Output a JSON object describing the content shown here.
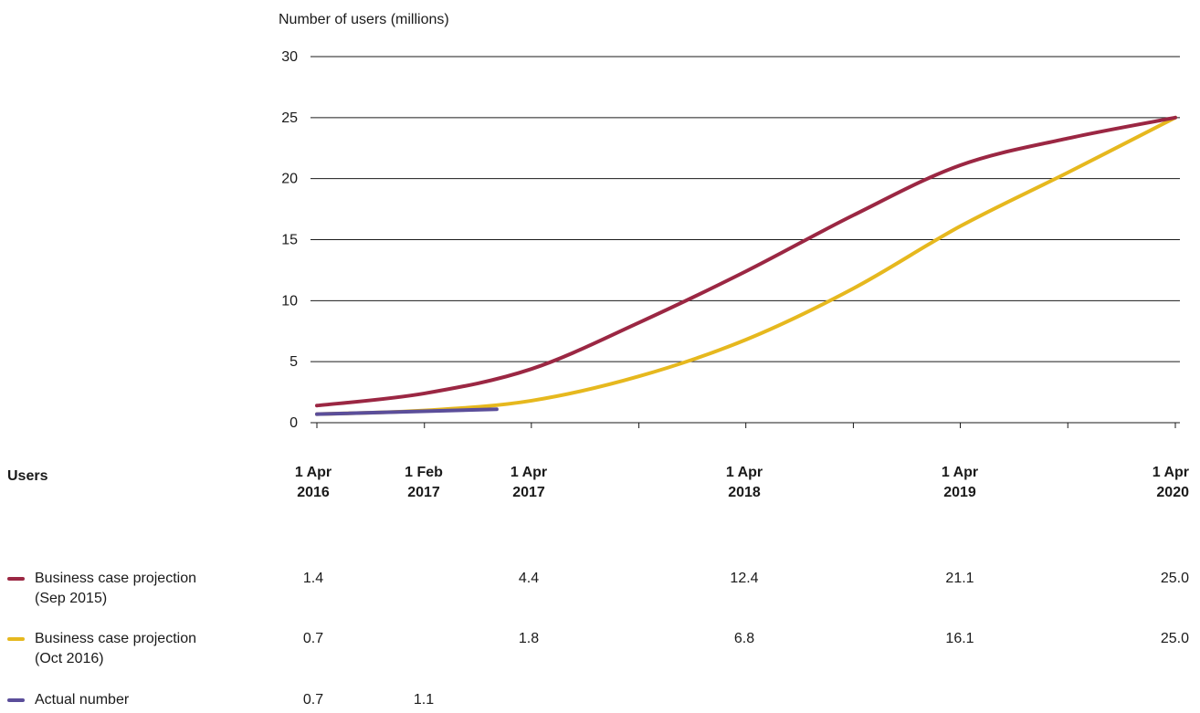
{
  "chart_data": {
    "type": "line",
    "ylabel": "Number of users (millions)",
    "ylim": [
      0,
      30
    ],
    "yticks": [
      "0",
      "5",
      "10",
      "15",
      "20",
      "25",
      "30"
    ],
    "grid": true,
    "x_tick_labels": [
      {
        "line1": "1 Apr",
        "line2": "2016"
      },
      {
        "line1": "1 Apr",
        "line2": "2017"
      },
      {
        "line1": "1 Apr",
        "line2": "2018"
      },
      {
        "line1": "1 Apr",
        "line2": "2019"
      },
      {
        "line1": "1 Apr",
        "line2": "2020"
      }
    ],
    "series": [
      {
        "label": "Business case projection (Sep 2015)",
        "color": "#9b2743",
        "points": [
          {
            "x": "2016-04-01",
            "y": 1.4
          },
          {
            "x": "2016-10-01",
            "y": 2.4
          },
          {
            "x": "2017-04-01",
            "y": 4.4
          },
          {
            "x": "2017-10-01",
            "y": 8.2
          },
          {
            "x": "2018-04-01",
            "y": 12.4
          },
          {
            "x": "2018-10-01",
            "y": 17.0
          },
          {
            "x": "2019-04-01",
            "y": 21.1
          },
          {
            "x": "2019-10-01",
            "y": 23.3
          },
          {
            "x": "2020-04-01",
            "y": 25.0
          }
        ]
      },
      {
        "label": "Business case projection (Oct 2016)",
        "color": "#e6b81e",
        "points": [
          {
            "x": "2016-04-01",
            "y": 0.7
          },
          {
            "x": "2016-10-01",
            "y": 1.0
          },
          {
            "x": "2017-04-01",
            "y": 1.8
          },
          {
            "x": "2017-10-01",
            "y": 3.8
          },
          {
            "x": "2018-04-01",
            "y": 6.8
          },
          {
            "x": "2018-10-01",
            "y": 11.0
          },
          {
            "x": "2019-04-01",
            "y": 16.1
          },
          {
            "x": "2019-10-01",
            "y": 20.5
          },
          {
            "x": "2020-04-01",
            "y": 25.0
          }
        ]
      },
      {
        "label": "Actual number",
        "color": "#5b4e9a",
        "points": [
          {
            "x": "2016-04-01",
            "y": 0.7
          },
          {
            "x": "2017-02-01",
            "y": 1.1
          }
        ]
      }
    ]
  },
  "table": {
    "title": "Users",
    "columns": [
      {
        "line1": "1 Apr",
        "line2": "2016"
      },
      {
        "line1": "1 Feb",
        "line2": "2017"
      },
      {
        "line1": "1 Apr",
        "line2": "2017"
      },
      {
        "line1": "1 Apr",
        "line2": "2018"
      },
      {
        "line1": "1 Apr",
        "line2": "2019"
      },
      {
        "line1": "1 Apr",
        "line2": "2020"
      }
    ],
    "rows": [
      {
        "label_line1": "Business case projection",
        "label_line2": "(Sep 2015)",
        "color": "#9b2743",
        "values": [
          "1.4",
          "",
          "4.4",
          "12.4",
          "21.1",
          "25.0"
        ]
      },
      {
        "label_line1": "Business case projection",
        "label_line2": "(Oct 2016)",
        "color": "#e6b81e",
        "values": [
          "0.7",
          "",
          "1.8",
          "6.8",
          "16.1",
          "25.0"
        ]
      },
      {
        "label_line1": "Actual number",
        "label_line2": "",
        "color": "#5b4e9a",
        "values": [
          "0.7",
          "1.1",
          "",
          "",
          "",
          ""
        ]
      }
    ]
  }
}
